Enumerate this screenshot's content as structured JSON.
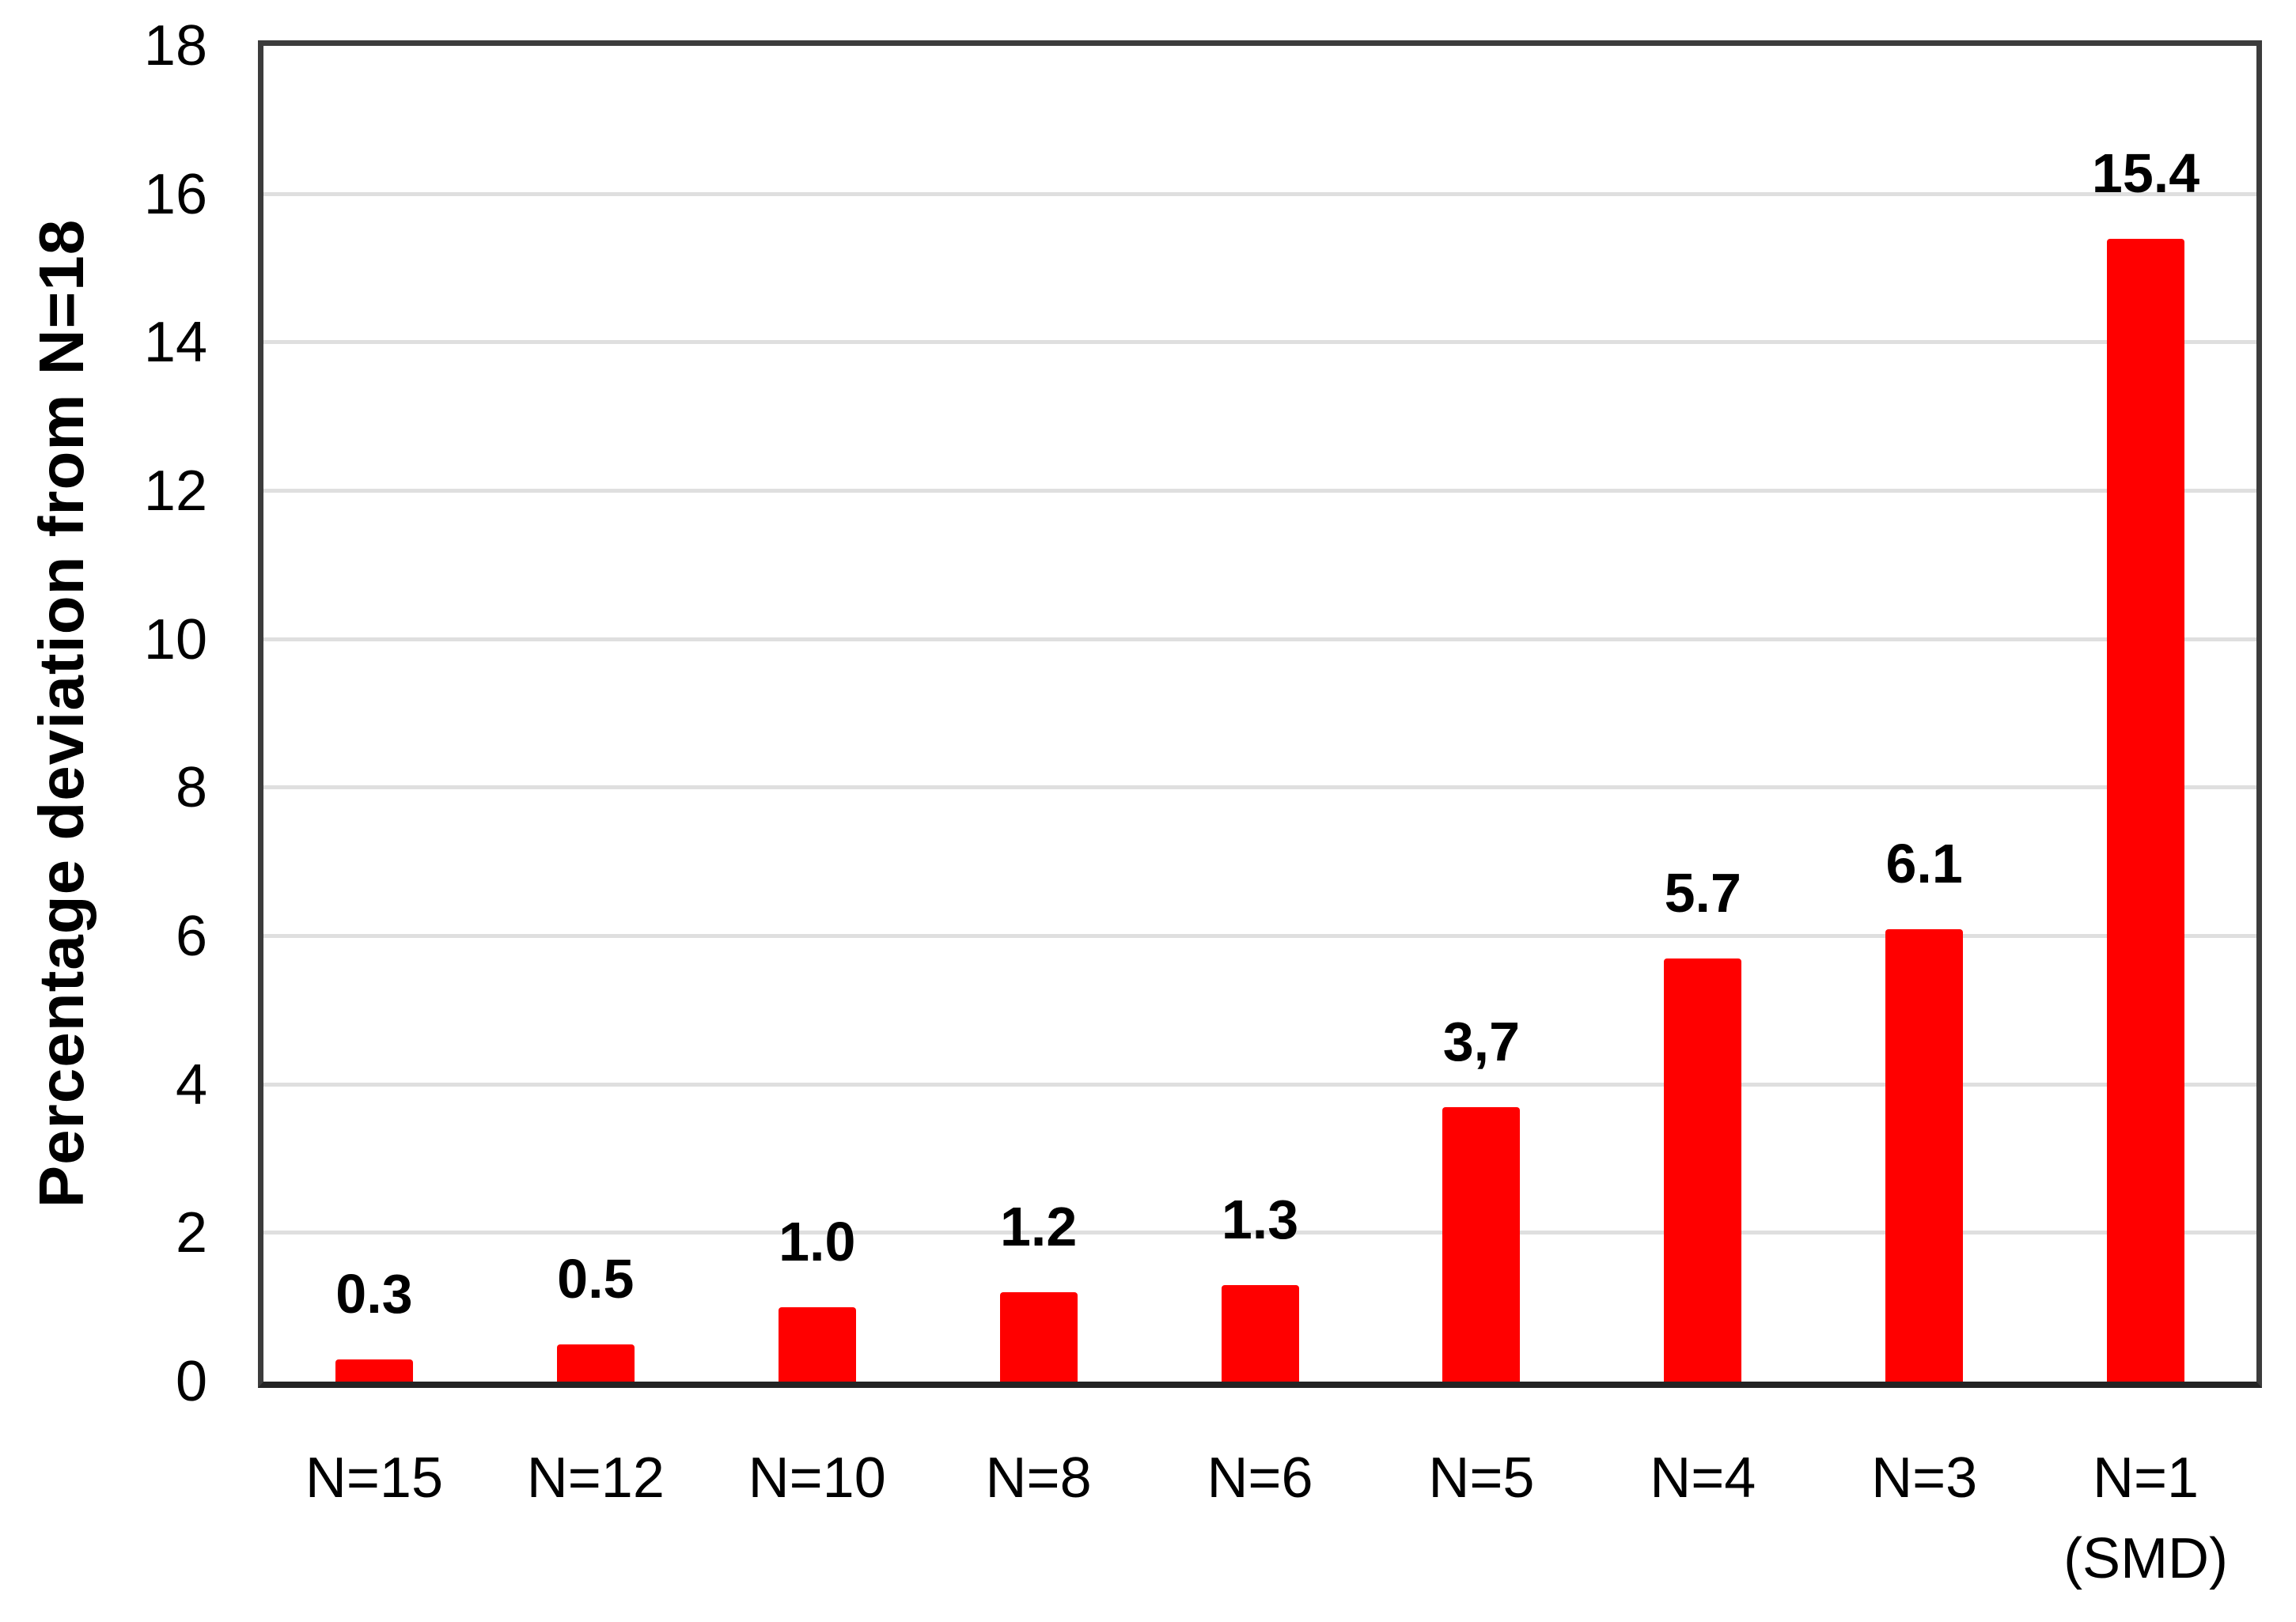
{
  "chart_data": {
    "type": "bar",
    "title": "",
    "ylabel": "Percentage deviation from N=18",
    "xlabel": "",
    "categories": [
      "N=15",
      "N=12",
      "N=10",
      "N=8",
      "N=6",
      "N=5",
      "N=4",
      "N=3",
      "N=1\n(SMD)"
    ],
    "values": [
      0.3,
      0.5,
      1.0,
      1.2,
      1.3,
      3.7,
      5.7,
      6.1,
      15.4
    ],
    "value_labels": [
      "0.3",
      "0.5",
      "1.0",
      "1.2",
      "1.3",
      "3,7",
      "5.7",
      "6.1",
      "15.4"
    ],
    "ylim": [
      0,
      18
    ],
    "yticks": [
      0,
      2,
      4,
      6,
      8,
      10,
      12,
      14,
      16,
      18
    ],
    "grid": "horizontal",
    "legend": "none",
    "colors": {
      "bar": "#FF0000",
      "gridline": "#DFDFDF",
      "frame": "#3C3C3C",
      "axis": "#242424",
      "text": "#000000",
      "background": "#FFFFFF"
    }
  }
}
